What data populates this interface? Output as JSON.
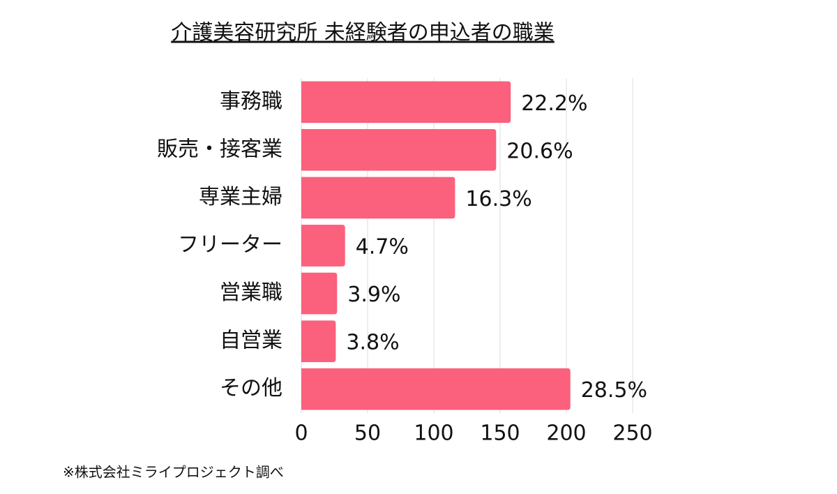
{
  "chart_data": {
    "type": "bar",
    "orientation": "horizontal",
    "title": "介護美容研究所 未経験者の申込者の職業",
    "categories": [
      "事務職",
      "販売・接客業",
      "専業主婦",
      "フリーター",
      "営業職",
      "自営業",
      "その他"
    ],
    "values": [
      158,
      147,
      116,
      33,
      27,
      26,
      203
    ],
    "value_labels": [
      "22.2%",
      "20.6%",
      "16.3%",
      "4.7%",
      "3.9%",
      "3.8%",
      "28.5%"
    ],
    "color": "#fb607c",
    "xlim": [
      0,
      250
    ],
    "xticks": [
      0,
      50,
      100,
      150,
      200,
      250
    ],
    "grid": true,
    "note": "※株式会社ミライプロジェクト調べ"
  }
}
